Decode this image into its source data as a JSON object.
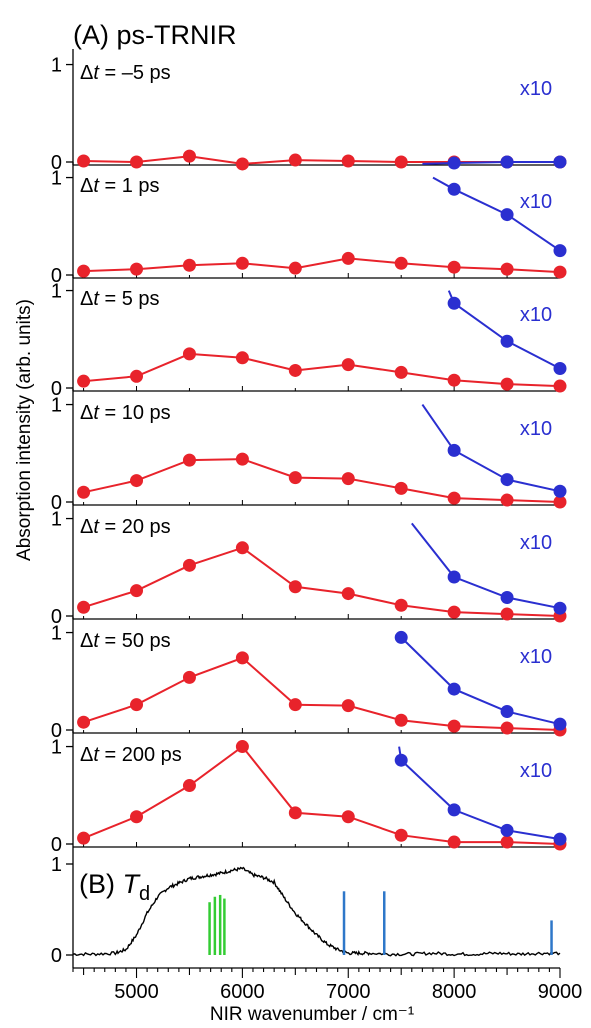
{
  "chart_data": {
    "type": "line",
    "title": "(A) ps-TRNIR",
    "xlabel": "NIR wavenumber / cm⁻¹",
    "ylabel": "Absorption intensity (arb. units)",
    "xlim": [
      4400,
      9000
    ],
    "ylim": [
      0,
      1
    ],
    "x_ticks": [
      "5000",
      "6000",
      "7000",
      "8000",
      "9000"
    ],
    "y_ticks": [
      "0",
      "1"
    ],
    "colors": {
      "red": "#e8232b",
      "blue": "#2a2fd0",
      "green": "#33cc33",
      "steel": "#2e77c9",
      "black": "#000000"
    },
    "panels": [
      {
        "label_prefix": "Δ",
        "label_italic": "t",
        "label_suffix": " = –5 ps",
        "scale_label": "x10",
        "red": {
          "x": [
            4500,
            5000,
            5500,
            6000,
            6500,
            7000,
            7500,
            8000,
            8500,
            9000
          ],
          "y": [
            0.01,
            0.0,
            0.06,
            -0.02,
            0.02,
            0.01,
            0.0,
            0.0,
            0.0,
            0.0
          ]
        },
        "blue": {
          "x": [
            7700,
            8000,
            8500,
            9000
          ],
          "y": [
            -0.02,
            -0.01,
            0.0,
            0.0
          ]
        }
      },
      {
        "label_prefix": "Δ",
        "label_italic": "t",
        "label_suffix": " = 1 ps",
        "scale_label": "x10",
        "red": {
          "x": [
            4500,
            5000,
            5500,
            6000,
            6500,
            7000,
            7500,
            8000,
            8500,
            9000
          ],
          "y": [
            0.04,
            0.06,
            0.1,
            0.12,
            0.07,
            0.17,
            0.12,
            0.08,
            0.06,
            0.03
          ]
        },
        "blue": {
          "x": [
            7800,
            8000,
            8500,
            9000
          ],
          "y": [
            1.0,
            0.88,
            0.62,
            0.25
          ]
        }
      },
      {
        "label_prefix": "Δ",
        "label_italic": "t",
        "label_suffix": " = 5 ps",
        "scale_label": "x10",
        "red": {
          "x": [
            4500,
            5000,
            5500,
            6000,
            6500,
            7000,
            7500,
            8000,
            8500,
            9000
          ],
          "y": [
            0.07,
            0.12,
            0.35,
            0.31,
            0.18,
            0.24,
            0.16,
            0.08,
            0.04,
            0.02
          ]
        },
        "blue": {
          "x": [
            7950,
            8000,
            8500,
            9000
          ],
          "y": [
            1.0,
            0.87,
            0.48,
            0.2
          ]
        }
      },
      {
        "label_prefix": "Δ",
        "label_italic": "t",
        "label_suffix": " = 10 ps",
        "scale_label": "x10",
        "red": {
          "x": [
            4500,
            5000,
            5500,
            6000,
            6500,
            7000,
            7500,
            8000,
            8500,
            9000
          ],
          "y": [
            0.1,
            0.22,
            0.43,
            0.44,
            0.25,
            0.24,
            0.14,
            0.04,
            0.02,
            0.0
          ]
        },
        "blue": {
          "x": [
            7700,
            8000,
            8500,
            9000
          ],
          "y": [
            1.0,
            0.53,
            0.23,
            0.11
          ]
        }
      },
      {
        "label_prefix": "Δ",
        "label_italic": "t",
        "label_suffix": " = 20 ps",
        "scale_label": "x10",
        "red": {
          "x": [
            4500,
            5000,
            5500,
            6000,
            6500,
            7000,
            7500,
            8000,
            8500,
            9000
          ],
          "y": [
            0.09,
            0.26,
            0.52,
            0.7,
            0.3,
            0.23,
            0.11,
            0.04,
            0.02,
            0.0
          ]
        },
        "blue": {
          "x": [
            7600,
            8000,
            8500,
            9000
          ],
          "y": [
            0.95,
            0.4,
            0.19,
            0.08
          ]
        }
      },
      {
        "label_prefix": "Δ",
        "label_italic": "t",
        "label_suffix": " = 50 ps",
        "scale_label": "x10",
        "red": {
          "x": [
            4500,
            5000,
            5500,
            6000,
            6500,
            7000,
            7500,
            8000,
            8500,
            9000
          ],
          "y": [
            0.08,
            0.26,
            0.54,
            0.74,
            0.26,
            0.25,
            0.1,
            0.04,
            0.02,
            0.0
          ]
        },
        "blue": {
          "x": [
            7500,
            8000,
            8500,
            9000
          ],
          "y": [
            0.95,
            0.42,
            0.19,
            0.06
          ]
        }
      },
      {
        "label_prefix": "Δ",
        "label_italic": "t",
        "label_suffix": " = 200 ps",
        "scale_label": "x10",
        "red": {
          "x": [
            4500,
            5000,
            5500,
            6000,
            6500,
            7000,
            7500,
            8000,
            8500,
            9000
          ],
          "y": [
            0.06,
            0.28,
            0.6,
            1.0,
            0.32,
            0.28,
            0.09,
            0.02,
            0.02,
            0.0
          ]
        },
        "blue": {
          "x": [
            7480,
            7500,
            8000,
            8500,
            9000
          ],
          "y": [
            1.0,
            0.86,
            0.35,
            0.14,
            0.05
          ]
        }
      }
    ],
    "panel_b": {
      "label_prefix": "(B) ",
      "label_italic": "T",
      "label_sub": "d",
      "spectrum": {
        "x": [
          4400,
          4600,
          4800,
          4900,
          5000,
          5100,
          5200,
          5300,
          5400,
          5500,
          5600,
          5700,
          5800,
          5900,
          6000,
          6100,
          6200,
          6300,
          6400,
          6500,
          6600,
          6700,
          6800,
          6900,
          7000,
          7100,
          7200,
          7400,
          7600,
          7800,
          8000,
          8200,
          8400,
          8600,
          8800,
          9000
        ],
        "y": [
          0.01,
          0.01,
          0.02,
          0.06,
          0.22,
          0.46,
          0.64,
          0.74,
          0.79,
          0.84,
          0.86,
          0.88,
          0.9,
          0.93,
          0.95,
          0.88,
          0.85,
          0.8,
          0.62,
          0.46,
          0.34,
          0.22,
          0.12,
          0.06,
          0.02,
          0.02,
          0.02,
          0.01,
          0.01,
          0.02,
          0.01,
          0.01,
          0.02,
          0.01,
          0.02,
          0.02
        ]
      },
      "green_sticks": {
        "x": [
          5690,
          5740,
          5790,
          5830
        ],
        "y": [
          0.58,
          0.64,
          0.66,
          0.62
        ]
      },
      "blue_sticks": {
        "x": [
          6960,
          7340,
          8920
        ],
        "y": [
          0.7,
          0.7,
          0.38
        ]
      }
    }
  }
}
